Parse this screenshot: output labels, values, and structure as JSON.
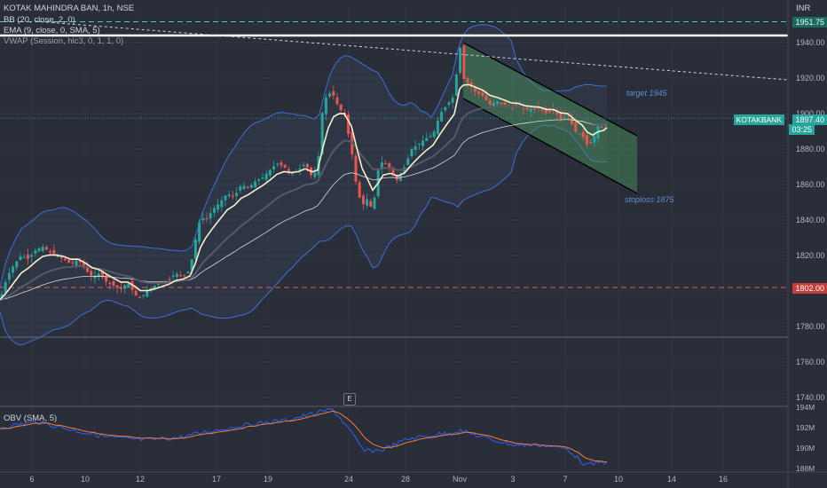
{
  "header": {
    "symbol": "KOTAK MAHINDRA BAN, 1h, NSE",
    "indicators": [
      "BB (20, close, 2, 0)",
      "EMA (9, close, 0, SMA, 5)",
      "VWAP (Session, hlc3, 0, 1, 1, 0)"
    ],
    "currency": "INR",
    "event_marker": "E"
  },
  "colors": {
    "background": "#2a2e39",
    "up": "#26a69a",
    "down": "#ef5350",
    "bb": "#3d6fd6",
    "channel_fill": "#4a9a5a",
    "resistance": "#ffffff",
    "target_line": "#3cd3b0",
    "stop_line": "#ef5350"
  },
  "price_tags": {
    "top": "1951.75",
    "symbol_tag": "KOTAKBANK",
    "last_price": "1897.40",
    "countdown": "03:25",
    "bottom": "1802.00"
  },
  "annotations": {
    "target": "target 1945",
    "stoploss": "stoploss 1875"
  },
  "obv": {
    "label": "OBV (SMA, 5)",
    "yticks": [
      "194M",
      "192M",
      "190M",
      "188M"
    ]
  },
  "chart_data": {
    "type": "line",
    "title": "KOTAK MAHINDRA BAN, 1h, NSE",
    "xlabel": "",
    "ylabel": "INR",
    "xticks": [
      "6",
      "10",
      "12",
      "17",
      "19",
      "24",
      "28",
      "Nov",
      "3",
      "7",
      "10",
      "14",
      "16"
    ],
    "yticks": [
      1940,
      1920,
      1900,
      1880,
      1860,
      1840,
      1820,
      1800,
      1780,
      1760,
      1740
    ],
    "ylim": [
      1734,
      1960
    ],
    "grid": true,
    "levels": [
      {
        "name": "target line",
        "value": 1951.75
      },
      {
        "name": "resistance",
        "value": 1944
      },
      {
        "name": "stop line",
        "value": 1802
      }
    ],
    "series": [
      {
        "name": "price",
        "x": [
          0,
          8,
          16,
          24,
          32,
          40,
          48,
          56,
          64,
          72,
          80,
          88,
          96,
          104,
          112,
          120,
          128,
          136,
          144,
          152,
          158,
          166,
          174,
          182,
          190,
          198,
          206,
          214,
          220,
          226,
          232,
          240,
          248,
          256,
          264,
          272,
          280,
          288,
          296,
          304,
          312,
          320,
          328,
          336,
          344,
          352,
          358,
          364,
          370,
          376,
          382,
          388,
          396,
          402,
          408,
          414,
          420,
          426,
          432,
          440,
          448,
          456,
          464,
          472,
          480,
          488,
          496,
          504,
          512,
          518,
          522,
          528,
          536,
          544,
          552,
          560,
          568,
          576,
          584,
          592,
          600,
          608,
          616,
          624,
          632,
          640,
          648,
          656,
          662,
          668,
          674,
          680,
          684
        ],
        "values": [
          1795,
          1808,
          1815,
          1820,
          1818,
          1823,
          1825,
          1822,
          1820,
          1818,
          1815,
          1818,
          1812,
          1808,
          1810,
          1805,
          1803,
          1801,
          1805,
          1798,
          1796,
          1800,
          1803,
          1805,
          1806,
          1810,
          1808,
          1812,
          1828,
          1842,
          1840,
          1846,
          1850,
          1855,
          1853,
          1860,
          1858,
          1862,
          1864,
          1868,
          1872,
          1870,
          1866,
          1868,
          1872,
          1864,
          1870,
          1905,
          1912,
          1910,
          1903,
          1900,
          1880,
          1858,
          1848,
          1852,
          1845,
          1868,
          1874,
          1868,
          1862,
          1870,
          1880,
          1883,
          1886,
          1888,
          1900,
          1905,
          1910,
          1940,
          1920,
          1917,
          1912,
          1910,
          1905,
          1907,
          1905,
          1903,
          1905,
          1902,
          1903,
          1903,
          1900,
          1902,
          1897,
          1899,
          1890,
          1888,
          1882,
          1885,
          1893,
          1892,
          1895
        ]
      },
      {
        "name": "obv",
        "x": [
          0,
          40,
          80,
          120,
          160,
          200,
          240,
          280,
          320,
          350,
          375,
          392,
          410,
          430,
          460,
          490,
          520,
          550,
          580,
          610,
          640,
          660,
          684
        ],
        "values": [
          192.0,
          192.6,
          191.8,
          191.1,
          190.8,
          191.0,
          191.7,
          192.3,
          192.7,
          193.3,
          193.8,
          192.0,
          189.7,
          189.8,
          190.9,
          191.3,
          191.7,
          190.9,
          190.3,
          190.3,
          189.9,
          188.3,
          188.7
        ]
      }
    ]
  }
}
